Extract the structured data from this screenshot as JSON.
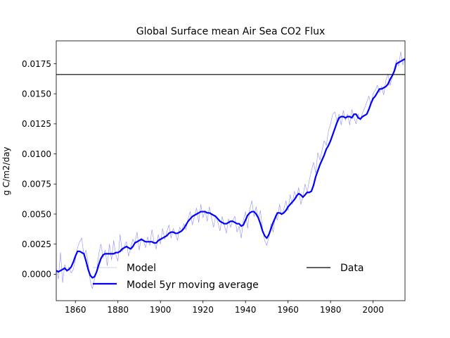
{
  "colors": {
    "model": "#0000ff",
    "data": "#000000",
    "axes": "#000000",
    "background": "#ffffff"
  },
  "chart_data": {
    "type": "line",
    "title": "Global Surface mean Air Sea CO2 Flux",
    "xlabel": "",
    "ylabel": "g C/m2/day",
    "xlim": [
      1851,
      2015
    ],
    "ylim": [
      -0.0022,
      0.0194
    ],
    "grid": false,
    "legend_position": "lower-center",
    "xticks": [
      1860,
      1880,
      1900,
      1920,
      1940,
      1960,
      1980,
      2000
    ],
    "xtick_labels": [
      "1860",
      "1880",
      "1900",
      "1920",
      "1940",
      "1960",
      "1980",
      "2000"
    ],
    "yticks": [
      0.0,
      0.0025,
      0.005,
      0.0075,
      0.01,
      0.0125,
      0.015,
      0.0175
    ],
    "ytick_labels": [
      "0.0000",
      "0.0025",
      "0.0050",
      "0.0075",
      "0.0100",
      "0.0125",
      "0.0150",
      "0.0175"
    ],
    "series": [
      {
        "name": "Model",
        "style": "thin",
        "x": [
          1851,
          1852,
          1853,
          1854,
          1855,
          1856,
          1857,
          1858,
          1859,
          1860,
          1861,
          1862,
          1863,
          1864,
          1865,
          1866,
          1867,
          1868,
          1869,
          1870,
          1871,
          1872,
          1873,
          1874,
          1875,
          1876,
          1877,
          1878,
          1879,
          1880,
          1881,
          1882,
          1883,
          1884,
          1885,
          1886,
          1887,
          1888,
          1889,
          1890,
          1891,
          1892,
          1893,
          1894,
          1895,
          1896,
          1897,
          1898,
          1899,
          1900,
          1901,
          1902,
          1903,
          1904,
          1905,
          1906,
          1907,
          1908,
          1909,
          1910,
          1911,
          1912,
          1913,
          1914,
          1915,
          1916,
          1917,
          1918,
          1919,
          1920,
          1921,
          1922,
          1923,
          1924,
          1925,
          1926,
          1927,
          1928,
          1929,
          1930,
          1931,
          1932,
          1933,
          1934,
          1935,
          1936,
          1937,
          1938,
          1939,
          1940,
          1941,
          1942,
          1943,
          1944,
          1945,
          1946,
          1947,
          1948,
          1949,
          1950,
          1951,
          1952,
          1953,
          1954,
          1955,
          1956,
          1957,
          1958,
          1959,
          1960,
          1961,
          1962,
          1963,
          1964,
          1965,
          1966,
          1967,
          1968,
          1969,
          1970,
          1971,
          1972,
          1973,
          1974,
          1975,
          1976,
          1977,
          1978,
          1979,
          1980,
          1981,
          1982,
          1983,
          1984,
          1985,
          1986,
          1987,
          1988,
          1989,
          1990,
          1991,
          1992,
          1993,
          1994,
          1995,
          1996,
          1997,
          1998,
          1999,
          2000,
          2001,
          2002,
          2003,
          2004,
          2005,
          2006,
          2007,
          2008,
          2009,
          2010,
          2011,
          2012,
          2013,
          2014,
          2015
        ],
        "y": [
          0.0004,
          -0.0004,
          0.0018,
          -0.0007,
          0.0008,
          0.0002,
          0.0006,
          0.0001,
          0.0004,
          0.0012,
          0.0022,
          0.0027,
          0.003,
          0.0015,
          0.002,
          0.0009,
          -0.0006,
          -0.0012,
          -0.0004,
          0.0002,
          0.0017,
          0.0025,
          0.0014,
          0.002,
          0.0007,
          0.0025,
          0.0012,
          0.0028,
          0.0016,
          0.0011,
          0.0033,
          0.0019,
          0.0023,
          0.0027,
          0.0015,
          0.0022,
          0.0029,
          0.0026,
          0.0035,
          0.002,
          0.003,
          0.0028,
          0.0022,
          0.0031,
          0.0024,
          0.0037,
          0.0027,
          0.0021,
          0.0033,
          0.0025,
          0.0038,
          0.0029,
          0.0035,
          0.0041,
          0.003,
          0.0038,
          0.0034,
          0.0028,
          0.0039,
          0.0036,
          0.0042,
          0.0037,
          0.0046,
          0.0052,
          0.0041,
          0.0048,
          0.0055,
          0.0043,
          0.0058,
          0.0047,
          0.0053,
          0.0044,
          0.0056,
          0.0047,
          0.0039,
          0.0049,
          0.0043,
          0.0036,
          0.0048,
          0.0041,
          0.0034,
          0.0046,
          0.0039,
          0.0045,
          0.0048,
          0.0035,
          0.004,
          0.003,
          0.0045,
          0.0052,
          0.0038,
          0.0054,
          0.0061,
          0.0048,
          0.0056,
          0.0046,
          0.0053,
          0.0038,
          0.0028,
          0.0024,
          0.0031,
          0.0042,
          0.0035,
          0.0049,
          0.0045,
          0.0058,
          0.0049,
          0.0054,
          0.0061,
          0.0053,
          0.0066,
          0.0058,
          0.0069,
          0.0063,
          0.0072,
          0.0058,
          0.0065,
          0.0075,
          0.0068,
          0.0078,
          0.0086,
          0.0093,
          0.0084,
          0.0101,
          0.0095,
          0.0103,
          0.0111,
          0.0107,
          0.0119,
          0.0125,
          0.0133,
          0.0135,
          0.0127,
          0.0133,
          0.0124,
          0.0136,
          0.0128,
          0.0133,
          0.0124,
          0.0137,
          0.013,
          0.0125,
          0.0133,
          0.0128,
          0.0134,
          0.0138,
          0.0143,
          0.0148,
          0.0141,
          0.015,
          0.0153,
          0.0157,
          0.0151,
          0.0156,
          0.0149,
          0.0161,
          0.0166,
          0.0157,
          0.0164,
          0.0171,
          0.0178,
          0.0173,
          0.0185,
          0.0174,
          0.0179
        ]
      },
      {
        "name": "Model 5yr moving average",
        "style": "thick",
        "x": [
          1851,
          1852,
          1853,
          1854,
          1855,
          1856,
          1857,
          1858,
          1859,
          1860,
          1861,
          1862,
          1863,
          1864,
          1865,
          1866,
          1867,
          1868,
          1869,
          1870,
          1871,
          1872,
          1873,
          1874,
          1875,
          1876,
          1877,
          1878,
          1879,
          1880,
          1881,
          1882,
          1883,
          1884,
          1885,
          1886,
          1887,
          1888,
          1889,
          1890,
          1891,
          1892,
          1893,
          1894,
          1895,
          1896,
          1897,
          1898,
          1899,
          1900,
          1901,
          1902,
          1903,
          1904,
          1905,
          1906,
          1907,
          1908,
          1909,
          1910,
          1911,
          1912,
          1913,
          1914,
          1915,
          1916,
          1917,
          1918,
          1919,
          1920,
          1921,
          1922,
          1923,
          1924,
          1925,
          1926,
          1927,
          1928,
          1929,
          1930,
          1931,
          1932,
          1933,
          1934,
          1935,
          1936,
          1937,
          1938,
          1939,
          1940,
          1941,
          1942,
          1943,
          1944,
          1945,
          1946,
          1947,
          1948,
          1949,
          1950,
          1951,
          1952,
          1953,
          1954,
          1955,
          1956,
          1957,
          1958,
          1959,
          1960,
          1961,
          1962,
          1963,
          1964,
          1965,
          1966,
          1967,
          1968,
          1969,
          1970,
          1971,
          1972,
          1973,
          1974,
          1975,
          1976,
          1977,
          1978,
          1979,
          1980,
          1981,
          1982,
          1983,
          1984,
          1985,
          1986,
          1987,
          1988,
          1989,
          1990,
          1991,
          1992,
          1993,
          1994,
          1995,
          1996,
          1997,
          1998,
          1999,
          2000,
          2001,
          2002,
          2003,
          2004,
          2005,
          2006,
          2007,
          2008,
          2009,
          2010,
          2011,
          2012,
          2013,
          2014,
          2015
        ],
        "y": [
          0.0003,
          0.0002,
          0.0003,
          0.0004,
          0.0005,
          0.0003,
          0.0004,
          0.0006,
          0.001,
          0.0015,
          0.0019,
          0.0019,
          0.0018,
          0.0017,
          0.0011,
          0.0004,
          -0.0001,
          -0.0003,
          -0.0002,
          0.0002,
          0.0008,
          0.0013,
          0.0016,
          0.0017,
          0.0017,
          0.0017,
          0.0017,
          0.0017,
          0.0018,
          0.0018,
          0.0019,
          0.0021,
          0.0022,
          0.0023,
          0.0022,
          0.0021,
          0.0023,
          0.0026,
          0.0027,
          0.0028,
          0.0029,
          0.0028,
          0.0027,
          0.0027,
          0.0027,
          0.0027,
          0.0026,
          0.0026,
          0.0028,
          0.0029,
          0.003,
          0.0031,
          0.0032,
          0.0034,
          0.0035,
          0.0035,
          0.0034,
          0.0034,
          0.0035,
          0.0036,
          0.0038,
          0.0041,
          0.0044,
          0.0046,
          0.0048,
          0.0049,
          0.005,
          0.0051,
          0.0052,
          0.0052,
          0.0052,
          0.0051,
          0.0051,
          0.005,
          0.0049,
          0.0048,
          0.0046,
          0.0044,
          0.0043,
          0.0042,
          0.0042,
          0.0043,
          0.0044,
          0.0044,
          0.0043,
          0.0042,
          0.0042,
          0.004,
          0.0041,
          0.0045,
          0.0049,
          0.0051,
          0.0052,
          0.0052,
          0.005,
          0.0047,
          0.0042,
          0.0036,
          0.0032,
          0.003,
          0.0033,
          0.0038,
          0.0043,
          0.0047,
          0.0051,
          0.0051,
          0.005,
          0.0051,
          0.0053,
          0.0056,
          0.0058,
          0.006,
          0.0062,
          0.0065,
          0.0067,
          0.0066,
          0.0064,
          0.0066,
          0.0068,
          0.0068,
          0.0069,
          0.0074,
          0.0081,
          0.0086,
          0.0091,
          0.0095,
          0.0099,
          0.0104,
          0.0107,
          0.0111,
          0.0116,
          0.0121,
          0.0126,
          0.013,
          0.0131,
          0.0131,
          0.013,
          0.0131,
          0.0131,
          0.013,
          0.0133,
          0.0133,
          0.013,
          0.0129,
          0.0131,
          0.0132,
          0.0133,
          0.0137,
          0.0142,
          0.0146,
          0.0148,
          0.0151,
          0.0154,
          0.0154,
          0.0155,
          0.0156,
          0.0158,
          0.0162,
          0.0165,
          0.0169,
          0.0175,
          0.0176,
          0.0177,
          0.0178,
          0.0179
        ]
      },
      {
        "name": "Data",
        "style": "hline",
        "value": 0.0166
      }
    ]
  }
}
